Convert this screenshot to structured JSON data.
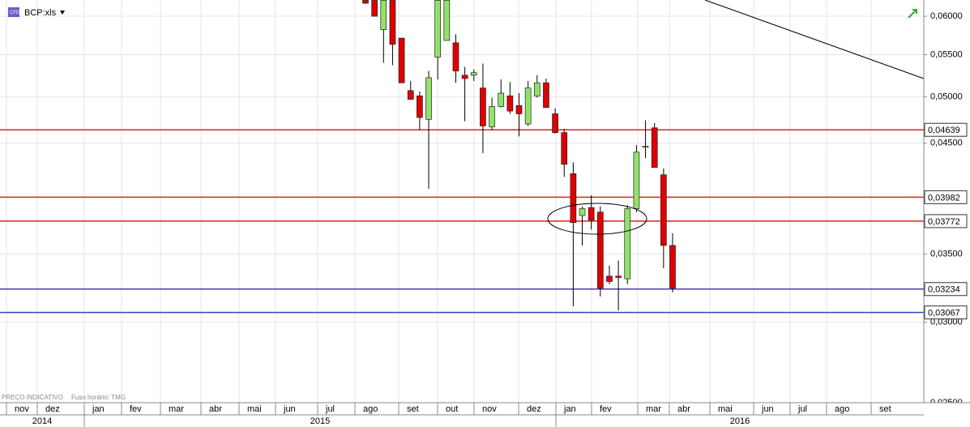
{
  "chart_data": {
    "type": "candlestick",
    "title": "BCP:xls",
    "footer": [
      "PREÇO INDICATIVO",
      "Fuso horário: TMG"
    ],
    "log_scale": true,
    "grid": true,
    "up_color": "#8fe36a",
    "down_color": "#e00000",
    "ylim": [
      0.025,
      0.06225
    ],
    "yticks": [
      {
        "value": 0.025,
        "label": "0,02500"
      },
      {
        "value": 0.03,
        "label": "0,03000"
      },
      {
        "value": 0.035,
        "label": "0,03500"
      },
      {
        "value": 0.045,
        "label": "0,04500"
      },
      {
        "value": 0.05,
        "label": "0,05000"
      },
      {
        "value": 0.055,
        "label": "0,05500"
      },
      {
        "value": 0.06,
        "label": "0,06000"
      }
    ],
    "levels": [
      {
        "value": 0.04639,
        "label": "0,04639",
        "color": "#e02020"
      },
      {
        "value": 0.03982,
        "label": "0,03982",
        "color": "#e02020"
      },
      {
        "value": 0.03772,
        "label": "0,03772",
        "color": "#e02020"
      },
      {
        "value": 0.03234,
        "label": "0,03234",
        "color": "#5a3a9a"
      },
      {
        "value": 0.03067,
        "label": "0,03067",
        "color": "#2a4ab8"
      }
    ],
    "months": [
      "nov",
      "dez",
      "jan",
      "fev",
      "mar",
      "abr",
      "mai",
      "jun",
      "jul",
      "ago",
      "set",
      "out",
      "nov",
      "dez",
      "jan",
      "fev",
      "mar",
      "abr",
      "mai",
      "jun",
      "jul",
      "ago",
      "set"
    ],
    "years": [
      "2014",
      "2015",
      "2016"
    ],
    "categories": [
      null,
      null,
      null,
      null,
      null,
      null,
      null,
      null,
      null,
      null,
      null,
      null,
      null,
      null,
      null,
      null,
      null,
      null,
      null,
      null,
      null,
      null,
      null,
      null,
      null,
      null,
      null,
      null,
      null,
      null,
      null,
      null,
      null,
      null,
      null
    ],
    "open": [
      0.0622,
      0.0622,
      0.0582,
      0.0622,
      0.0571,
      0.0507,
      0.0501,
      0.0475,
      0.0547,
      0.0568,
      0.0565,
      0.0525,
      0.0525,
      0.051,
      0.0467,
      0.0489,
      0.0501,
      0.049,
      0.047,
      0.0501,
      0.0516,
      0.0481,
      0.0461,
      0.042,
      0.0382,
      0.0389,
      0.0385,
      0.0333,
      0.0333,
      0.0331,
      0.0388,
      0.0446,
      0.0466,
      0.0419,
      0.0357
    ],
    "high": [
      0.0622,
      0.0622,
      0.0622,
      0.0622,
      0.0571,
      0.0518,
      0.0506,
      0.053,
      0.0622,
      0.0622,
      0.0576,
      0.0535,
      0.0532,
      0.0539,
      0.0499,
      0.052,
      0.0517,
      0.0504,
      0.0518,
      0.0525,
      0.0521,
      0.0487,
      0.0465,
      0.0431,
      0.039,
      0.04,
      0.039,
      0.0341,
      0.0345,
      0.0391,
      0.0448,
      0.0474,
      0.0471,
      0.0425,
      0.0367
    ],
    "low": [
      0.0617,
      0.06,
      0.054,
      0.0537,
      0.0516,
      0.0497,
      0.0464,
      0.0406,
      0.052,
      0.0568,
      0.0516,
      0.0473,
      0.0518,
      0.044,
      0.0464,
      0.0488,
      0.0481,
      0.0457,
      0.0468,
      0.0499,
      0.0488,
      0.046,
      0.0417,
      0.0311,
      0.0357,
      0.037,
      0.0318,
      0.0327,
      0.0308,
      0.0327,
      0.0385,
      0.0435,
      0.0426,
      0.0339,
      0.0321
    ],
    "close": [
      0.0618,
      0.06,
      0.0622,
      0.0563,
      0.0516,
      0.0497,
      0.0477,
      0.0522,
      0.0622,
      0.0622,
      0.053,
      0.0521,
      0.0528,
      0.0468,
      0.0489,
      0.0504,
      0.0484,
      0.0481,
      0.051,
      0.0516,
      0.0488,
      0.0461,
      0.0429,
      0.0376,
      0.0388,
      0.0378,
      0.0324,
      0.0329,
      0.0332,
      0.0388,
      0.0441,
      0.0447,
      0.0426,
      0.0357,
      0.0324
    ]
  }
}
